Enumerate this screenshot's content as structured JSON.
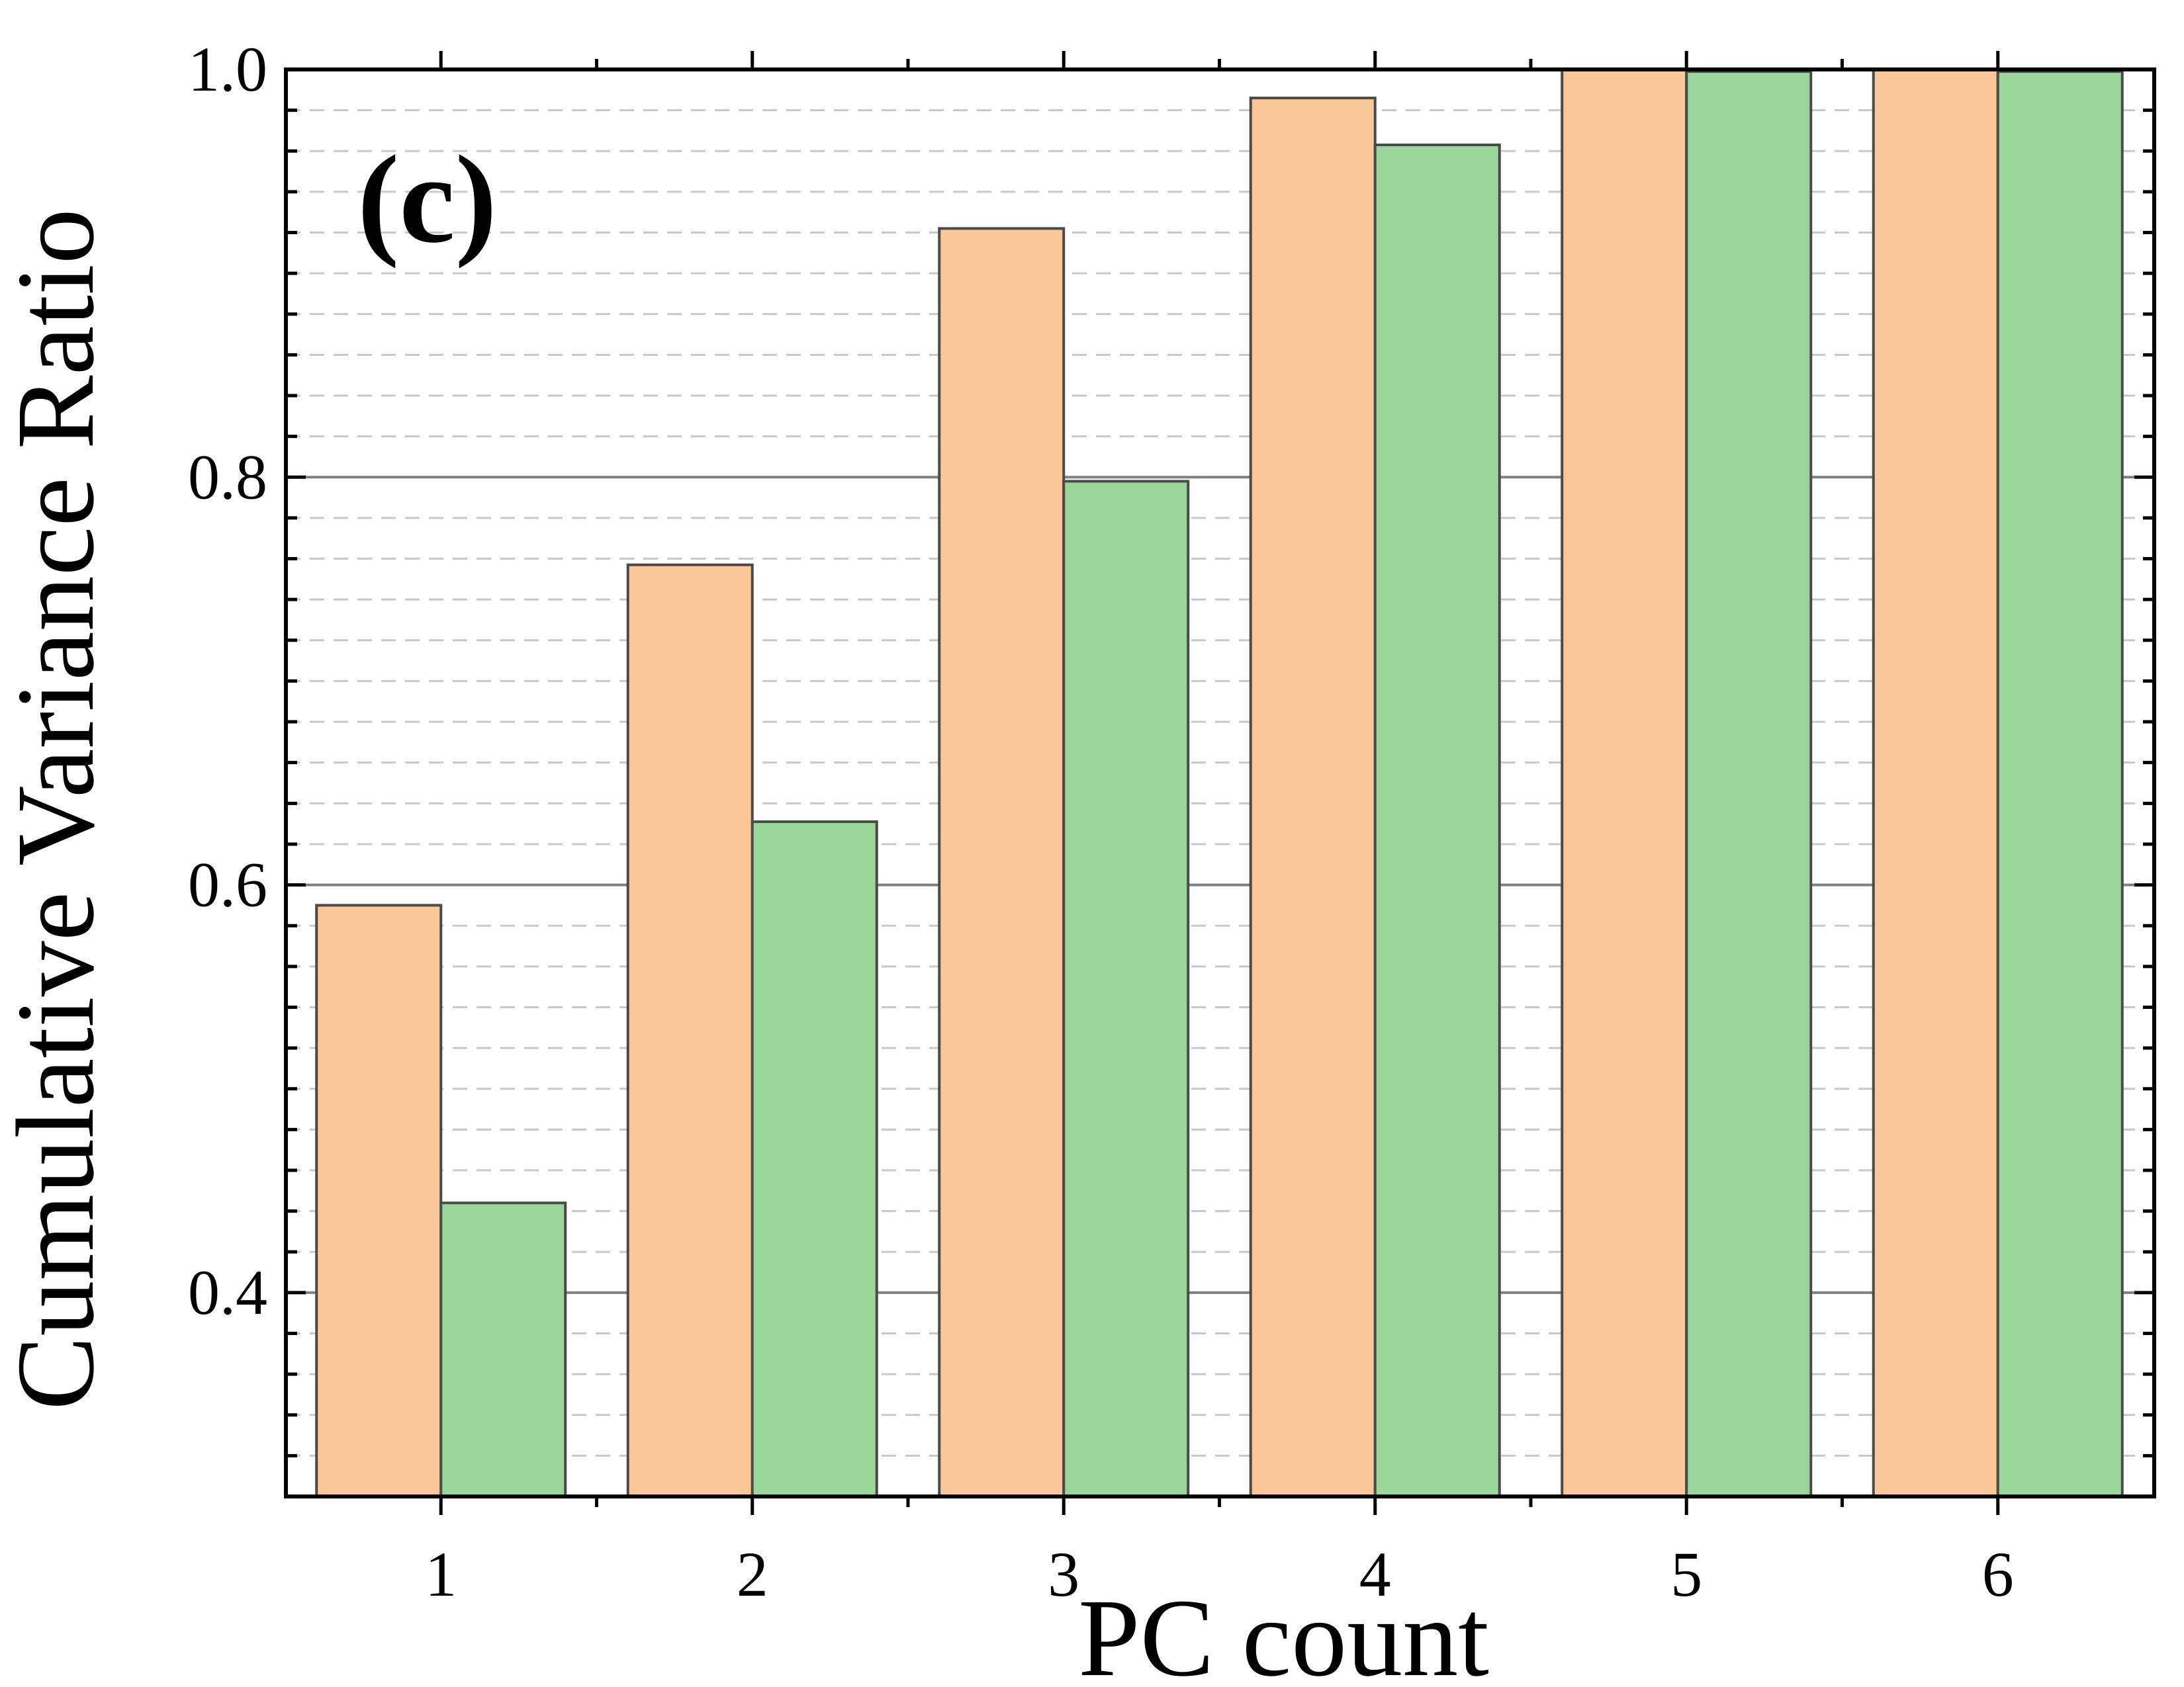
{
  "chart_data": {
    "type": "bar",
    "panel_label": "(c)",
    "xlabel": "PC count",
    "ylabel": "Cumulative Variance Ratio",
    "categories": [
      "1",
      "2",
      "3",
      "4",
      "5",
      "6"
    ],
    "series": [
      {
        "color": "#fac898",
        "values": [
          0.59,
          0.757,
          0.922,
          0.986,
          1.0,
          1.0
        ]
      },
      {
        "color": "#9ad69a",
        "values": [
          0.444,
          0.631,
          0.798,
          0.963,
          0.999,
          0.999
        ]
      }
    ],
    "ylim": [
      0.3,
      1.0
    ],
    "yticks": [
      0.4,
      0.6,
      0.8,
      1.0
    ],
    "ytick_labels": [
      "0.4",
      "0.6",
      "0.8",
      "1.0"
    ],
    "minor_ytick_step": 0.02,
    "grid": "major solid, minor dashed (horizontal)",
    "legend": "none"
  }
}
